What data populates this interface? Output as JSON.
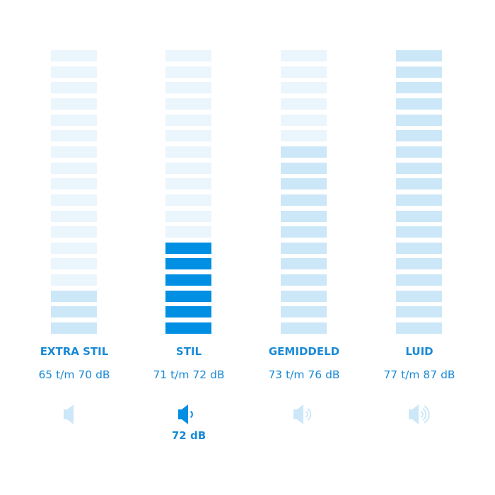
{
  "colors": {
    "inactive": "#eaf5fc",
    "range": "#cce7f8",
    "active": "#008fe3",
    "text": "#1a8ad6"
  },
  "segments_per_column": 18,
  "columns": [
    {
      "label": "EXTRA STIL",
      "range": "65 t/m 70 dB",
      "filled_segments": 3,
      "state": "range",
      "speaker_waves": 0,
      "icon": "speaker-icon",
      "current": ""
    },
    {
      "label": "STIL",
      "range": "71 t/m 72 dB",
      "filled_segments": 6,
      "state": "active",
      "speaker_waves": 1,
      "icon": "speaker-icon",
      "current": "72 dB"
    },
    {
      "label": "GEMIDDELD",
      "range": "73 t/m 76 dB",
      "filled_segments": 12,
      "state": "range",
      "speaker_waves": 2,
      "icon": "speaker-icon",
      "current": ""
    },
    {
      "label": "LUID",
      "range": "77 t/m 87 dB",
      "filled_segments": 18,
      "state": "range",
      "speaker_waves": 3,
      "icon": "speaker-icon",
      "current": ""
    }
  ]
}
